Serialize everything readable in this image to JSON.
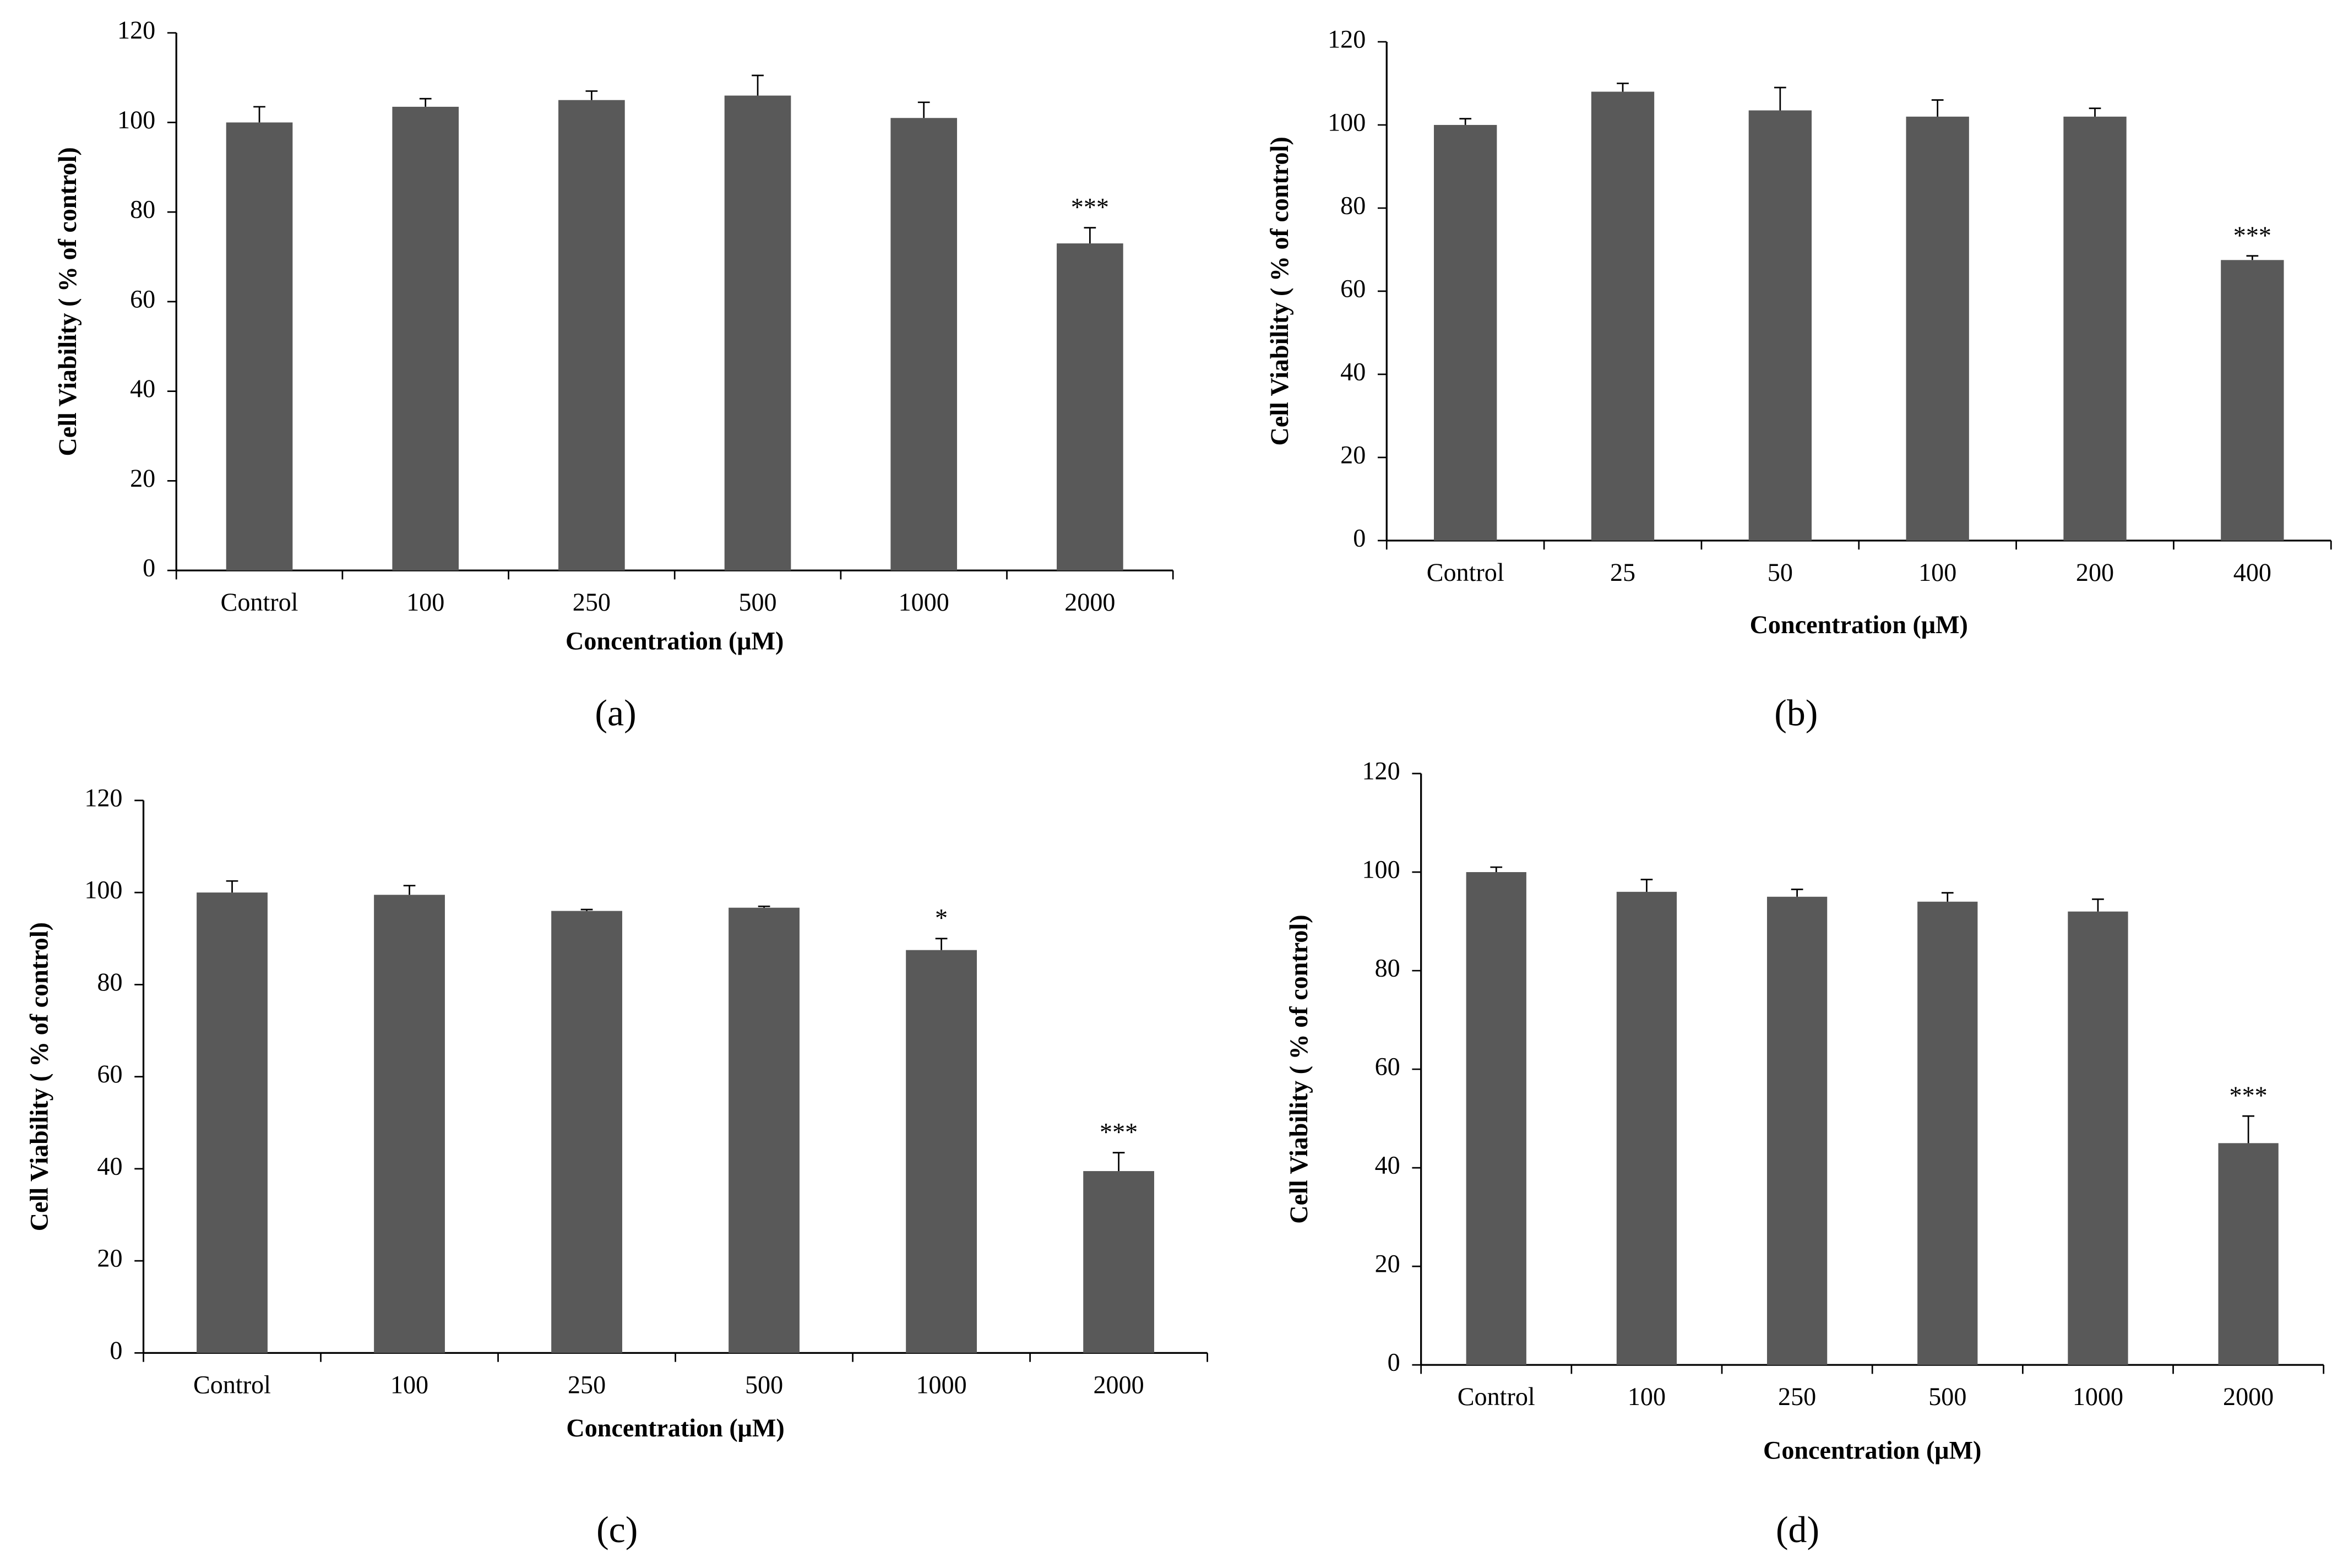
{
  "chart_data": [
    {
      "type": "bar",
      "panel_label": "(a)",
      "xlabel": "Concentration (μM)",
      "ylabel": "Cell Viability ( % of control)",
      "categories": [
        "Control",
        "100",
        "250",
        "500",
        "1000",
        "2000"
      ],
      "values": [
        100,
        103.5,
        105,
        106,
        101,
        73
      ],
      "errors": [
        3.5,
        1.8,
        2,
        4.5,
        3.5,
        3.5
      ],
      "annotations": [
        null,
        null,
        null,
        null,
        null,
        "***"
      ],
      "color": "#595959",
      "ylim": [
        0,
        120
      ],
      "yticks": [
        0,
        20,
        40,
        60,
        80,
        100,
        120
      ]
    },
    {
      "type": "bar",
      "panel_label": "(b)",
      "xlabel": "Concentration (μM)",
      "ylabel": "Cell Viability ( % of control)",
      "categories": [
        "Control",
        "25",
        "50",
        "100",
        "200",
        "400"
      ],
      "values": [
        100,
        108,
        103.5,
        102,
        102,
        67.5
      ],
      "errors": [
        1.5,
        2,
        5.5,
        4,
        2,
        1
      ],
      "annotations": [
        null,
        null,
        null,
        null,
        null,
        "***"
      ],
      "color": "#595959",
      "ylim": [
        0,
        120
      ],
      "yticks": [
        0,
        20,
        40,
        60,
        80,
        100,
        120
      ]
    },
    {
      "type": "bar",
      "panel_label": "(c)",
      "xlabel": "Concentration (μM)",
      "ylabel": "Cell Viability ( % of control)",
      "categories": [
        "Control",
        "100",
        "250",
        "500",
        "1000",
        "2000"
      ],
      "values": [
        100,
        99.5,
        96,
        96.7,
        87.5,
        39.5
      ],
      "errors": [
        2.5,
        2,
        0.3,
        0.3,
        2.5,
        4
      ],
      "annotations": [
        null,
        null,
        null,
        null,
        "*",
        "***"
      ],
      "color": "#595959",
      "ylim": [
        0,
        120
      ],
      "yticks": [
        0,
        20,
        40,
        60,
        80,
        100,
        120
      ]
    },
    {
      "type": "bar",
      "panel_label": "(d)",
      "xlabel": "Concentration (μM)",
      "ylabel": "Cell Viability ( % of control)",
      "categories": [
        "Control",
        "100",
        "250",
        "500",
        "1000",
        "2000"
      ],
      "values": [
        100,
        96,
        95,
        94,
        92,
        45
      ],
      "errors": [
        1,
        2.5,
        1.5,
        1.8,
        2.5,
        5.5
      ],
      "annotations": [
        null,
        null,
        null,
        null,
        null,
        "***"
      ],
      "color": "#595959",
      "ylim": [
        0,
        120
      ],
      "yticks": [
        0,
        20,
        40,
        60,
        80,
        100,
        120
      ]
    }
  ]
}
